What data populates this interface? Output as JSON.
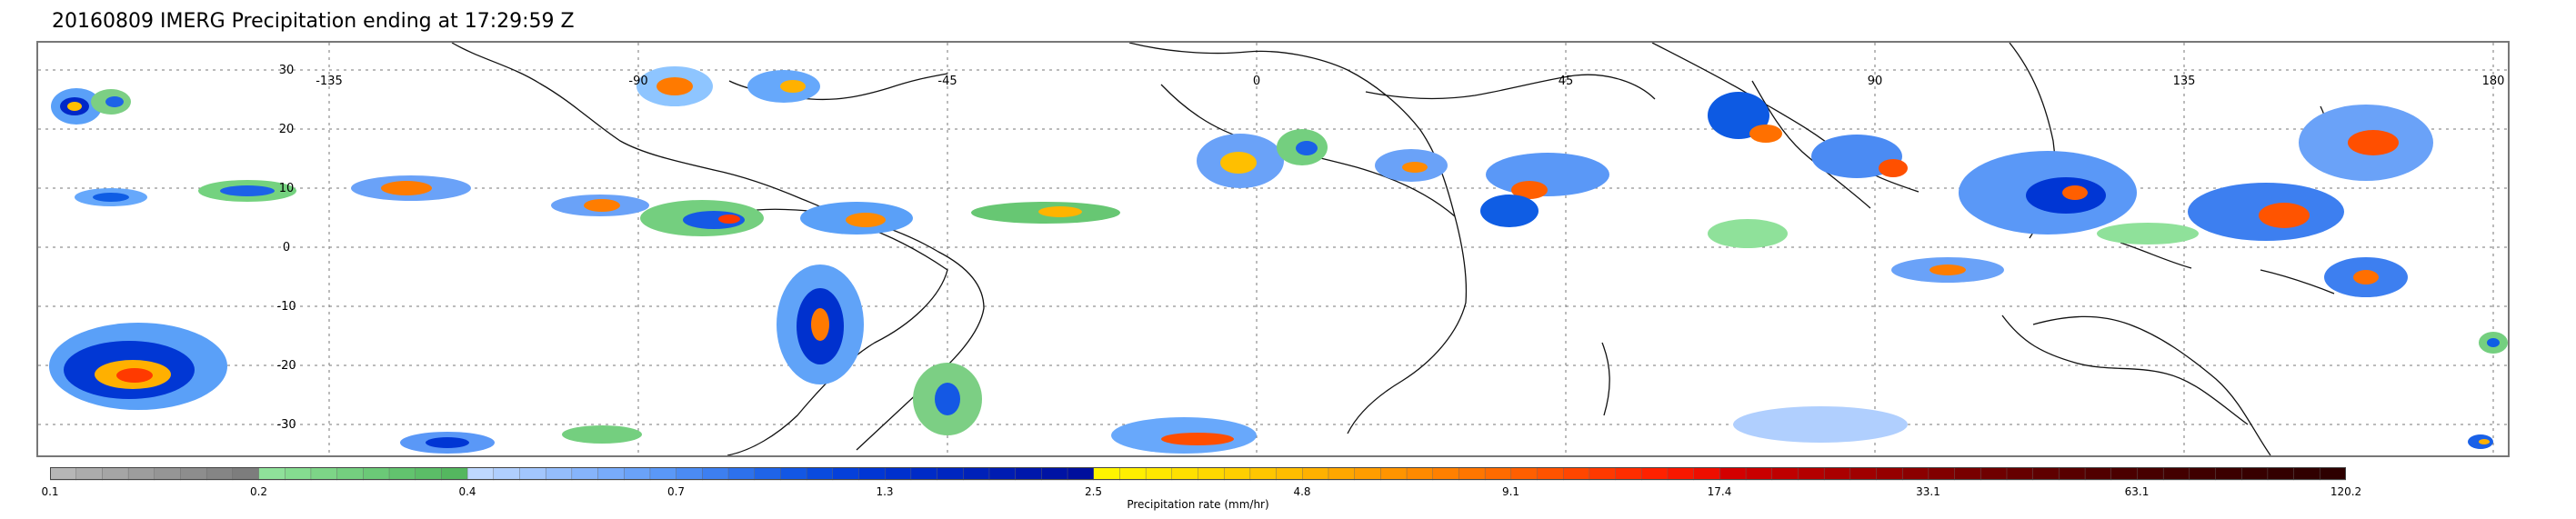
{
  "title": "20160809 IMERG Precipitation ending at 17:29:59 Z",
  "map": {
    "longitude_labels": [
      "-135",
      "-90",
      "-45",
      "0",
      "45",
      "90",
      "135",
      "180"
    ],
    "latitude_labels": [
      "30",
      "20",
      "10",
      "0",
      "-10",
      "-20",
      "-30"
    ]
  },
  "colorbar": {
    "title": "Precipitation rate (mm/hr)",
    "labels": [
      "0.1",
      "0.2",
      "0.4",
      "0.7",
      "1.3",
      "2.5",
      "4.8",
      "9.1",
      "17.4",
      "33.1",
      "63.1",
      "120.2"
    ],
    "colors": [
      "#b6b6b6",
      "#acacac",
      "#a5a5a5",
      "#9d9d9d",
      "#959595",
      "#8d8d8d",
      "#858585",
      "#7d7d7d",
      "#8fe19a",
      "#85dc90",
      "#7dd587",
      "#74cf7f",
      "#6bc977",
      "#62c36e",
      "#5bbd67",
      "#54b75f",
      "#bed8ff",
      "#b0cffe",
      "#a2c6fd",
      "#94bdfc",
      "#86b4fb",
      "#78abfa",
      "#6aa2f8",
      "#5a98f7",
      "#4b8bf3",
      "#3d7ff0",
      "#2d71ec",
      "#1f64e8",
      "#1357e4",
      "#0a4bdf",
      "#0540da",
      "#0136d4",
      "#0030ce",
      "#002bc7",
      "#0026c0",
      "#0021b9",
      "#001cb2",
      "#0017ab",
      "#0013a4",
      "#000f9d",
      "#fff500",
      "#ffef00",
      "#ffe800",
      "#ffe000",
      "#ffd800",
      "#ffcf00",
      "#ffc600",
      "#ffbd00",
      "#ffb100",
      "#ffa700",
      "#ff9d00",
      "#ff9400",
      "#ff8a00",
      "#ff8000",
      "#ff7600",
      "#ff6b00",
      "#ff5f00",
      "#ff5300",
      "#ff4600",
      "#ff3900",
      "#ff2d00",
      "#ff2100",
      "#f81700",
      "#ee0e00",
      "#d40000",
      "#c90000",
      "#bf0000",
      "#b40000",
      "#aa0000",
      "#a00000",
      "#950000",
      "#8b0000",
      "#810000",
      "#780000",
      "#6f0000",
      "#660000",
      "#5f0000",
      "#580000",
      "#510000",
      "#4b0000",
      "#470000",
      "#430000",
      "#3f0000",
      "#3b0000",
      "#370000",
      "#330000",
      "#300000",
      "#2d0000"
    ]
  }
}
